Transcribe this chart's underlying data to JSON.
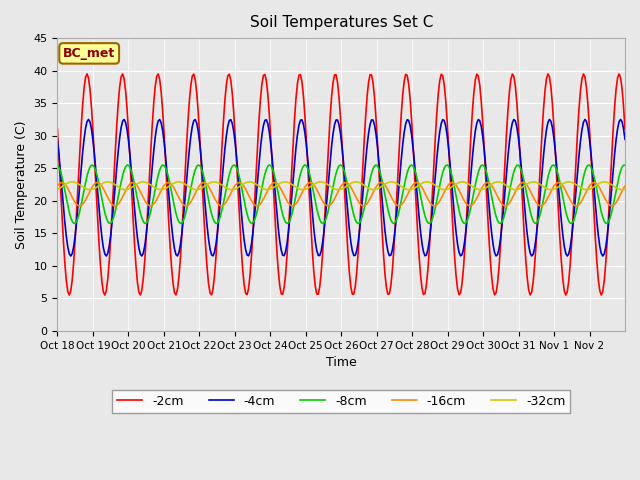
{
  "title": "Soil Temperatures Set C",
  "xlabel": "Time",
  "ylabel": "Soil Temperature (C)",
  "legend_label": "BC_met",
  "ylim": [
    0,
    45
  ],
  "xlim": [
    0,
    16
  ],
  "num_days": 16,
  "series_colors": [
    "#ff0000",
    "#0000cc",
    "#00cc00",
    "#ff8800",
    "#cccc00"
  ],
  "series_labels": [
    "-2cm",
    "-4cm",
    "-8cm",
    "-16cm",
    "-32cm"
  ],
  "bg_color": "#e8e8e8",
  "plot_bg_color": "#e8e8e8",
  "legend_box_color": "#ffff99",
  "legend_box_edge_color": "#996600",
  "grid_color": "#ffffff",
  "tick_labels": [
    "Oct 18",
    "Oct 19",
    "Oct 20",
    "Oct 21",
    "Oct 22",
    "Oct 23",
    "Oct 24",
    "Oct 25",
    "Oct 26",
    "Oct 27",
    "Oct 28",
    "Oct 29",
    "Oct 30",
    "Oct 31",
    "Nov 1",
    "Nov 2"
  ],
  "mean_temps": [
    22.5,
    22.0,
    21.0,
    21.0,
    22.3
  ],
  "amplitudes": [
    17.0,
    10.5,
    4.5,
    1.8,
    0.6
  ],
  "phase_delays_hours": [
    0.0,
    1.0,
    3.5,
    7.0,
    14.0
  ],
  "peak_hour": 14.0
}
